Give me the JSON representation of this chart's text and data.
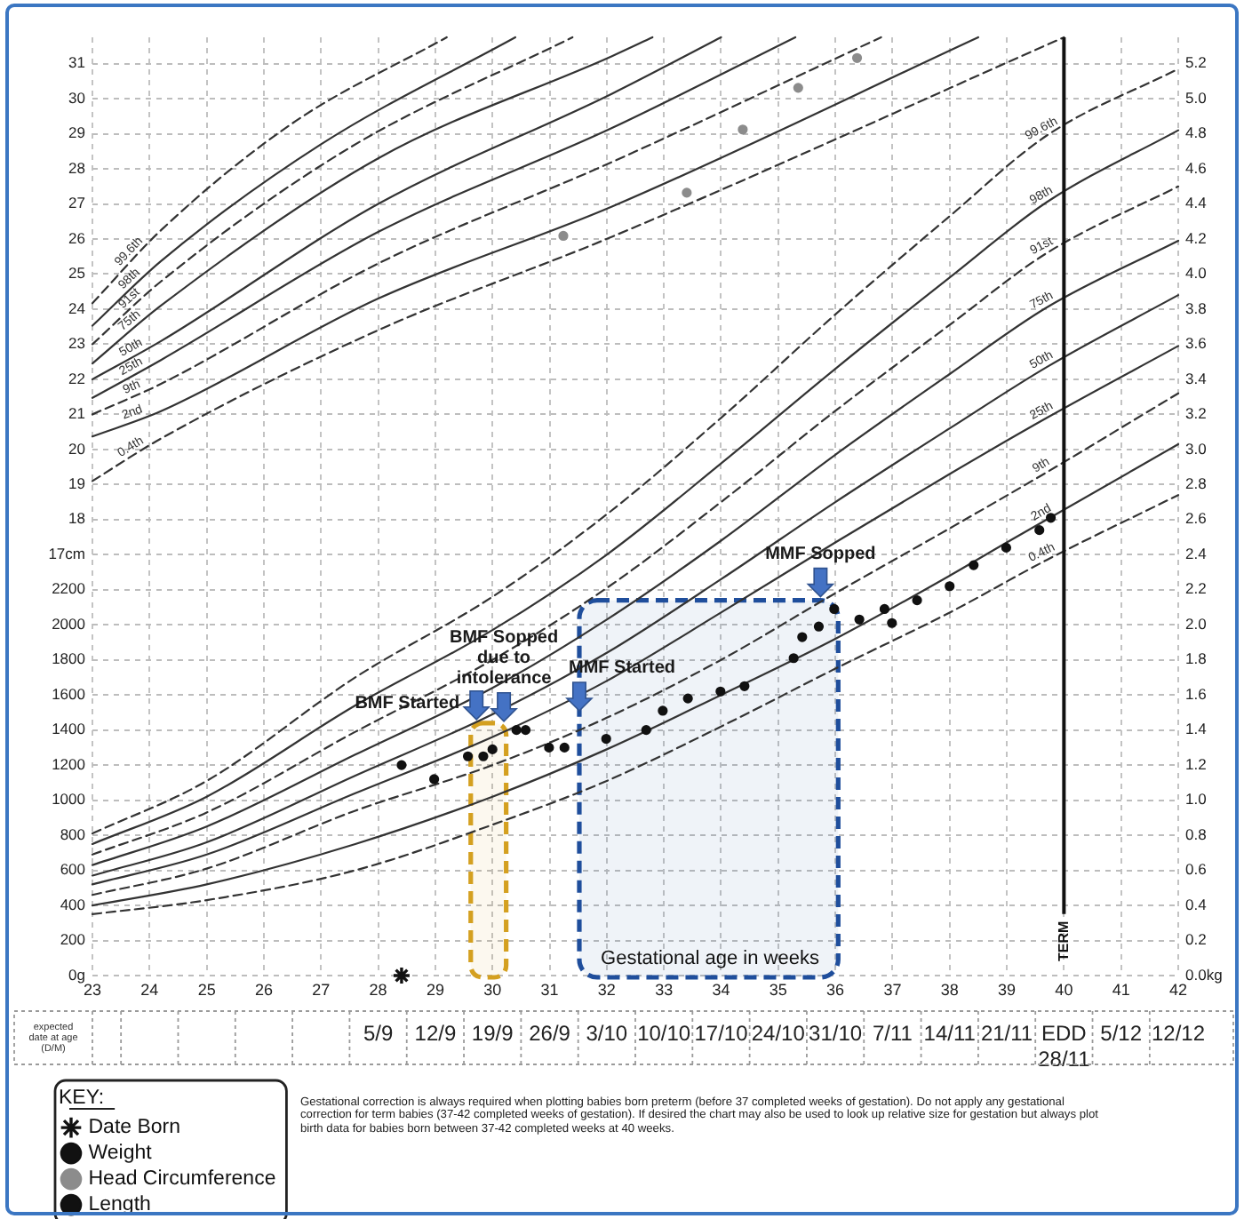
{
  "chart_data": {
    "type": "line",
    "xlabel": "Gestational age in weeks",
    "x2label": "expected date at age (D/M)",
    "legend_title": "KEY:",
    "legend": "bottom left",
    "grid": true,
    "marker": "none",
    "xlim": [
      23,
      42
    ],
    "xticks": [
      23,
      24,
      25,
      26,
      27,
      28,
      29,
      30,
      31,
      32,
      33,
      34,
      35,
      36,
      37,
      38,
      39,
      40,
      41,
      42
    ],
    "x2lim": [
      "--08-01",
      "--12-12"
    ],
    "x2ticks": [
      {
        "value": "--09-05",
        "label": "5/9"
      },
      {
        "value": "--09-12",
        "label": "12/9"
      },
      {
        "value": "--09-19",
        "label": "19/9"
      },
      {
        "value": "--09-26",
        "label": "26/9"
      },
      {
        "value": "--10-03",
        "label": "3/10"
      },
      {
        "value": "--10-10",
        "label": "10/10"
      },
      {
        "value": "--10-17",
        "label": "17/10"
      },
      {
        "value": "--10-24",
        "label": "24/10"
      },
      {
        "value": "--10-31",
        "label": "31/10"
      },
      {
        "value": "--11-07",
        "label": "7/11"
      },
      {
        "value": "--11-14",
        "label": "14/11"
      },
      {
        "value": "--11-21",
        "label": "21/11"
      },
      {
        "value": "--11-28",
        "label": "EDD 28/11"
      },
      {
        "value": "--12-05",
        "label": "5/12"
      },
      {
        "value": "--12-12",
        "label": "12/12"
      }
    ],
    "ylim": [
      0,
      5.35
    ],
    "yticks": [
      {
        "value": 0,
        "label": "0.0kg"
      },
      0.2,
      0.4,
      0.6,
      0.8,
      {
        "value": 1,
        "label": "1.0"
      },
      1.2,
      1.4,
      1.6,
      1.8,
      {
        "value": 2,
        "label": "2.0"
      },
      2.2,
      2.4,
      2.6,
      2.8,
      {
        "value": 3,
        "label": "3.0"
      },
      3.2,
      3.4,
      3.6,
      3.8,
      {
        "value": 4,
        "label": "4.0"
      },
      4.2,
      4.4,
      4.6,
      4.8,
      {
        "value": 5,
        "label": "5.0"
      },
      5.2
    ],
    "y2lim": [
      0,
      5350
    ],
    "y2ticks": [
      {
        "value": 0,
        "label": "0g"
      },
      200,
      400,
      600,
      800,
      1000,
      1200,
      1400,
      1600,
      1800,
      2000,
      2200
    ],
    "y3lim": [
      5,
      31.75
    ],
    "y3ticks": [
      {
        "value": 17,
        "label": "17cm"
      },
      18,
      19,
      20,
      21,
      22,
      23,
      24,
      25,
      26,
      27,
      28,
      29,
      30,
      31
    ],
    "series": [
      {
        "name": "99.6th",
        "color": "#333333",
        "line_style": "dashed",
        "x": [
          23,
          25,
          27.6,
          30,
          32,
          34,
          36,
          38,
          39.7,
          42
        ],
        "values": [
          0.81,
          1.11,
          1.7,
          2.16,
          2.63,
          3.18,
          3.77,
          4.33,
          4.79,
          5.17
        ]
      },
      {
        "name": "98th",
        "color": "#333333",
        "line_style": "solid",
        "x": [
          23,
          25,
          27.6,
          30,
          32,
          34,
          36,
          38,
          39.7,
          42
        ],
        "values": [
          0.75,
          1.02,
          1.54,
          1.97,
          2.4,
          2.92,
          3.46,
          3.98,
          4.41,
          4.82
        ]
      },
      {
        "name": "91st",
        "color": "#333333",
        "line_style": "dashed",
        "x": [
          23,
          25,
          27.6,
          30,
          32,
          34,
          36,
          38,
          39.7,
          42
        ],
        "values": [
          0.69,
          0.93,
          1.39,
          1.8,
          2.21,
          2.7,
          3.22,
          3.71,
          4.12,
          4.5
        ]
      },
      {
        "name": "75th",
        "color": "#333333",
        "line_style": "solid",
        "x": [
          23,
          25,
          27.6,
          30,
          32,
          34,
          36,
          38,
          39.7,
          42
        ],
        "values": [
          0.63,
          0.85,
          1.26,
          1.64,
          2.03,
          2.48,
          2.97,
          3.43,
          3.81,
          4.19
        ]
      },
      {
        "name": "50th",
        "color": "#333333",
        "line_style": "solid",
        "x": [
          23,
          25,
          27.6,
          30,
          32,
          34,
          36,
          38,
          39.7,
          42
        ],
        "values": [
          0.57,
          0.76,
          1.14,
          1.49,
          1.84,
          2.26,
          2.7,
          3.12,
          3.47,
          3.88
        ]
      },
      {
        "name": "25th",
        "color": "#333333",
        "line_style": "solid",
        "x": [
          23,
          25,
          27.6,
          30,
          32,
          34,
          36,
          38,
          39.7,
          42
        ],
        "values": [
          0.52,
          0.69,
          1.04,
          1.36,
          1.68,
          2.07,
          2.47,
          2.86,
          3.18,
          3.59
        ]
      },
      {
        "name": "9th",
        "color": "#333333",
        "line_style": "dashed",
        "x": [
          23,
          25,
          27.6,
          30,
          32,
          34,
          36,
          38,
          39.7,
          42
        ],
        "values": [
          0.46,
          0.61,
          0.94,
          1.2,
          1.47,
          1.8,
          2.18,
          2.55,
          2.87,
          3.32
        ]
      },
      {
        "name": "2nd",
        "color": "#333333",
        "line_style": "solid",
        "x": [
          23,
          25,
          27.6,
          30,
          32,
          34,
          36,
          38,
          39,
          39.7,
          42
        ],
        "values": [
          0.4,
          0.52,
          0.75,
          1.02,
          1.29,
          1.6,
          1.92,
          2.28,
          2.47,
          2.6,
          3.03
        ]
      },
      {
        "name": "0.4th",
        "color": "#333333",
        "line_style": "dashed",
        "x": [
          23,
          25,
          27.6,
          30,
          32,
          34,
          36,
          38,
          39.7,
          42
        ],
        "values": [
          0.35,
          0.43,
          0.6,
          0.86,
          1.11,
          1.42,
          1.75,
          2.07,
          2.37,
          2.74
        ]
      },
      {
        "name": "99.6th",
        "color": "#333333",
        "line_style": "dashed",
        "axis": "y3",
        "x": [
          23,
          24.2,
          26.5,
          29.2
        ],
        "values": [
          24.17,
          26.25,
          29.3,
          31.75
        ]
      },
      {
        "name": "98th",
        "color": "#333333",
        "line_style": "solid",
        "axis": "y3",
        "x": [
          23,
          24.2,
          27,
          30.4
        ],
        "values": [
          23.53,
          25.37,
          28.7,
          31.75
        ]
      },
      {
        "name": "91st",
        "color": "#333333",
        "line_style": "dashed",
        "axis": "y3",
        "x": [
          23,
          24.2,
          27.5,
          31.4
        ],
        "values": [
          23.0,
          24.79,
          28.6,
          31.75
        ]
      },
      {
        "name": "75th",
        "color": "#333333",
        "line_style": "solid",
        "axis": "y3",
        "x": [
          23,
          24.2,
          28,
          32.1,
          32.8
        ],
        "values": [
          22.45,
          24.1,
          28.3,
          31.22,
          31.75
        ]
      },
      {
        "name": "50th",
        "color": "#333333",
        "line_style": "solid",
        "axis": "y3",
        "x": [
          23,
          24.2,
          28,
          32.1,
          34.0
        ],
        "values": [
          22.0,
          23.09,
          27.0,
          30.15,
          31.75
        ]
      },
      {
        "name": "25th",
        "color": "#333333",
        "line_style": "solid",
        "axis": "y3",
        "x": [
          23,
          24.2,
          28,
          32.1,
          35.3
        ],
        "values": [
          21.47,
          22.55,
          26.2,
          29.17,
          31.75
        ]
      },
      {
        "name": "9th",
        "color": "#333333",
        "line_style": "dashed",
        "axis": "y3",
        "x": [
          23,
          24.2,
          28,
          32.1,
          36.8
        ],
        "values": [
          21.0,
          21.87,
          25.3,
          28.2,
          31.75
        ]
      },
      {
        "name": "2nd",
        "color": "#333333",
        "line_style": "solid",
        "axis": "y3",
        "x": [
          23,
          24.2,
          28,
          32.1,
          38.5
        ],
        "values": [
          20.37,
          21.09,
          24.3,
          26.93,
          31.75
        ]
      },
      {
        "name": "0.4th",
        "color": "#333333",
        "line_style": "dashed",
        "axis": "y3",
        "x": [
          23,
          24.2,
          28,
          32.1,
          40.0
        ],
        "values": [
          19.1,
          20.31,
          23.4,
          26.07,
          31.75
        ]
      },
      {
        "name": "Date Born",
        "type": "scatter",
        "marker": "cross",
        "color": "#111111",
        "x": [
          28.41
        ],
        "values": [
          0
        ]
      },
      {
        "name": "Weight",
        "type": "scatter",
        "marker": "circle",
        "color": "#111111",
        "x": [
          28.41,
          28.98,
          29.57,
          29.84,
          30.0,
          30.42,
          30.58,
          30.99,
          31.26,
          31.99,
          32.69,
          32.98,
          33.42,
          33.99,
          34.41,
          35.27,
          35.42,
          35.71,
          35.98,
          36.42,
          36.86,
          36.99,
          37.43,
          38.0,
          38.42,
          38.99,
          39.57,
          39.77
        ],
        "values": [
          1.2,
          1.12,
          1.25,
          1.25,
          1.29,
          1.4,
          1.4,
          1.3,
          1.3,
          1.35,
          1.4,
          1.51,
          1.58,
          1.62,
          1.65,
          1.81,
          1.93,
          1.99,
          2.09,
          2.03,
          2.09,
          2.01,
          2.14,
          2.22,
          2.34,
          2.44,
          2.54,
          2.61
        ]
      },
      {
        "name": "Head Circumference",
        "type": "scatter",
        "marker": "circle",
        "color": "#8c8c8c",
        "axis": "y3",
        "x": [
          31.24,
          33.4,
          34.38,
          35.35,
          36.38
        ],
        "values": [
          26.09,
          27.32,
          29.12,
          30.31,
          31.16
        ]
      },
      {
        "name": "Length",
        "type": "scatter",
        "marker": "circle",
        "color": "#111111"
      }
    ],
    "ref_lines": [
      {
        "axis": "x",
        "value": 40,
        "label": "TERM",
        "color": "#111111"
      }
    ],
    "bands": [
      {
        "axis": "x",
        "from": 29.62,
        "to": 30.24,
        "color": "#d4a020"
      },
      {
        "axis": "x",
        "from": 31.52,
        "to": 36.05,
        "color": "#1f4e9c"
      }
    ],
    "annotations": [
      {
        "text": "BMF Started",
        "x": 29.72,
        "y": 1.46
      },
      {
        "text": "BMF Sopped due to intolerance",
        "x": 30.2,
        "y": 1.45
      },
      {
        "text": "MMF Started",
        "x": 31.52,
        "y": 1.51
      },
      {
        "text": "MMF Sopped",
        "x": 35.74,
        "y": 2.16
      },
      "Gestational correction is always required when plotting babies born preterm (before 37 completed weeks of gestation). Do not apply any gestational correction for term babies (37-42 completed weeks of gestation). If desired the chart may also be used to look up relative size for gestation but always plot birth data for babies born between 37-42 completed weeks at 40 weeks."
    ]
  }
}
